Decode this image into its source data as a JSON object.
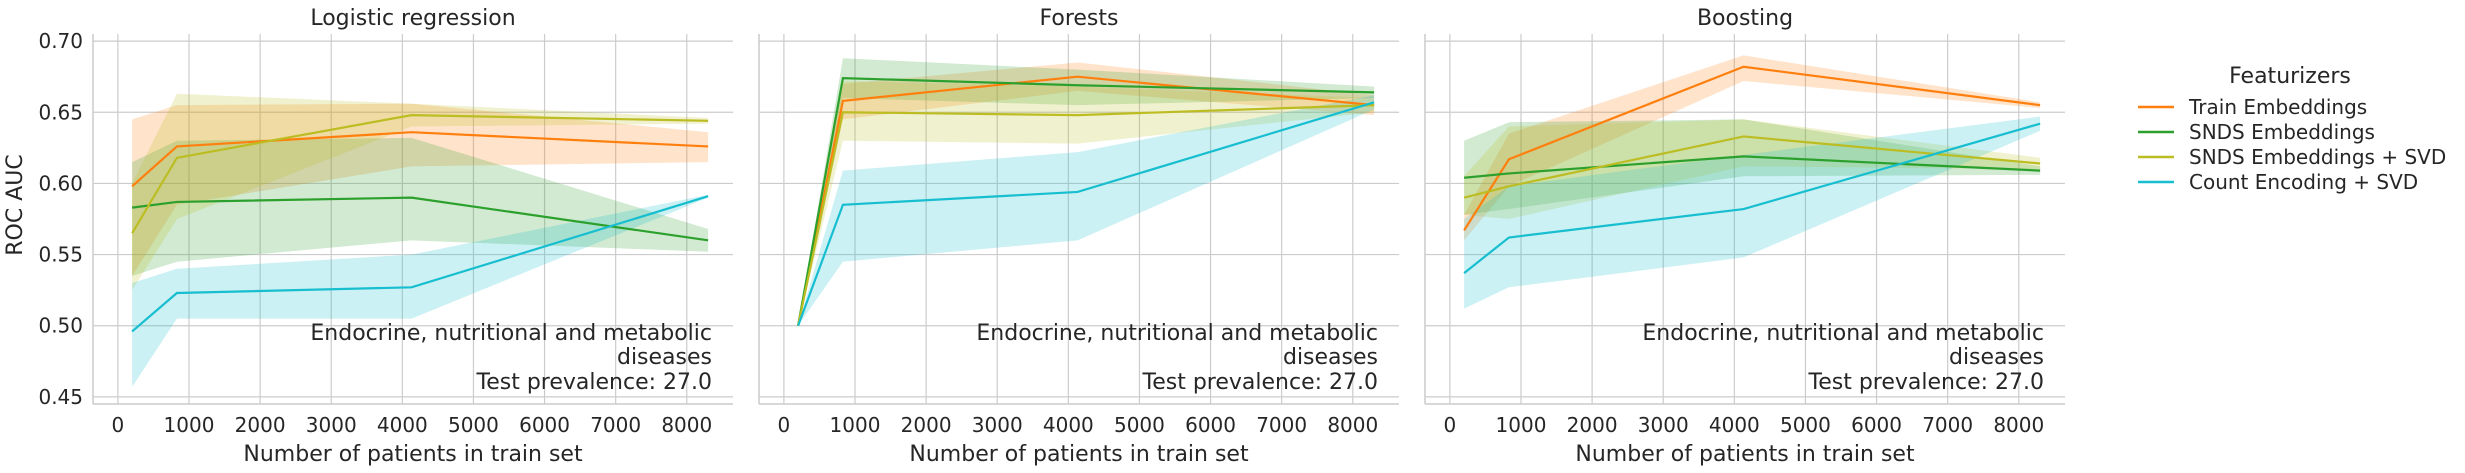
{
  "chart_data": {
    "type": "line",
    "ylabel": "ROC AUC",
    "xlabel": "Number of patients in train set",
    "ylim": [
      0.445,
      0.705
    ],
    "xlim": [
      -350,
      8650
    ],
    "xticks": [
      0,
      1000,
      2000,
      3000,
      4000,
      5000,
      6000,
      7000,
      8000
    ],
    "yticks": [
      "0.45",
      "0.50",
      "0.55",
      "0.60",
      "0.65",
      "0.70"
    ],
    "grid": true,
    "legend": {
      "title": "Featurizers",
      "placement": "right",
      "entries": [
        {
          "label": "Train Embeddings",
          "color": "#ff7f0e"
        },
        {
          "label": "SNDS Embeddings",
          "color": "#2ca02c"
        },
        {
          "label": "SNDS Embeddings + SVD",
          "color": "#bcbd22"
        },
        {
          "label": "Count Encoding + SVD",
          "color": "#17becf"
        }
      ]
    },
    "annotation": [
      "Endocrine, nutritional and metabolic",
      "diseases",
      "Test prevalence: 27.0"
    ],
    "panels": [
      {
        "title": "Logistic regression",
        "series": [
          {
            "name": "Train Embeddings",
            "color": "#ff7f0e",
            "x": [
              200,
              830,
              4130,
              8300
            ],
            "y": [
              0.598,
              0.626,
              0.636,
              0.626
            ],
            "lower": [
              0.535,
              0.585,
              0.612,
              0.615
            ],
            "upper": [
              0.645,
              0.655,
              0.656,
              0.636
            ]
          },
          {
            "name": "SNDS Embeddings",
            "color": "#2ca02c",
            "x": [
              200,
              830,
              4130,
              8300
            ],
            "y": [
              0.583,
              0.587,
              0.59,
              0.56
            ],
            "lower": [
              0.535,
              0.545,
              0.56,
              0.552
            ],
            "upper": [
              0.615,
              0.63,
              0.632,
              0.568
            ]
          },
          {
            "name": "SNDS Embeddings + SVD",
            "color": "#bcbd22",
            "x": [
              200,
              830,
              4130,
              8300
            ],
            "y": [
              0.565,
              0.618,
              0.648,
              0.644
            ],
            "lower": [
              0.525,
              0.575,
              0.64,
              0.642
            ],
            "upper": [
              0.6,
              0.663,
              0.656,
              0.646
            ]
          },
          {
            "name": "Count Encoding + SVD",
            "color": "#17becf",
            "x": [
              200,
              830,
              4130,
              8300
            ],
            "y": [
              0.496,
              0.523,
              0.527,
              0.591
            ],
            "lower": [
              0.457,
              0.505,
              0.505,
              0.59
            ],
            "upper": [
              0.53,
              0.54,
              0.55,
              0.592
            ]
          }
        ]
      },
      {
        "title": "Forests",
        "series": [
          {
            "name": "Train Embeddings",
            "color": "#ff7f0e",
            "x": [
              200,
              830,
              4130,
              8300
            ],
            "y": [
              0.5,
              0.658,
              0.675,
              0.655
            ],
            "lower": [
              0.5,
              0.645,
              0.665,
              0.648
            ],
            "upper": [
              0.5,
              0.67,
              0.685,
              0.662
            ]
          },
          {
            "name": "SNDS Embeddings",
            "color": "#2ca02c",
            "x": [
              200,
              830,
              4130,
              8300
            ],
            "y": [
              0.5,
              0.674,
              0.669,
              0.664
            ],
            "lower": [
              0.5,
              0.66,
              0.655,
              0.66
            ],
            "upper": [
              0.5,
              0.688,
              0.68,
              0.668
            ]
          },
          {
            "name": "SNDS Embeddings + SVD",
            "color": "#bcbd22",
            "x": [
              200,
              830,
              4130,
              8300
            ],
            "y": [
              0.5,
              0.65,
              0.648,
              0.655
            ],
            "lower": [
              0.5,
              0.63,
              0.628,
              0.65
            ],
            "upper": [
              0.5,
              0.672,
              0.668,
              0.66
            ]
          },
          {
            "name": "Count Encoding + SVD",
            "color": "#17becf",
            "x": [
              200,
              830,
              4130,
              8300
            ],
            "y": [
              0.5,
              0.585,
              0.594,
              0.657
            ],
            "lower": [
              0.5,
              0.545,
              0.56,
              0.652
            ],
            "upper": [
              0.5,
              0.609,
              0.622,
              0.662
            ]
          }
        ]
      },
      {
        "title": "Boosting",
        "series": [
          {
            "name": "Train Embeddings",
            "color": "#ff7f0e",
            "x": [
              200,
              830,
              4130,
              8300
            ],
            "y": [
              0.567,
              0.617,
              0.682,
              0.655
            ],
            "lower": [
              0.56,
              0.598,
              0.672,
              0.653
            ],
            "upper": [
              0.578,
              0.635,
              0.69,
              0.657
            ]
          },
          {
            "name": "SNDS Embeddings",
            "color": "#2ca02c",
            "x": [
              200,
              830,
              4130,
              8300
            ],
            "y": [
              0.604,
              0.607,
              0.619,
              0.609
            ],
            "lower": [
              0.578,
              0.582,
              0.605,
              0.606
            ],
            "upper": [
              0.63,
              0.643,
              0.645,
              0.612
            ]
          },
          {
            "name": "SNDS Embeddings + SVD",
            "color": "#bcbd22",
            "x": [
              200,
              830,
              4130,
              8300
            ],
            "y": [
              0.59,
              0.598,
              0.633,
              0.614
            ],
            "lower": [
              0.578,
              0.575,
              0.612,
              0.61
            ],
            "upper": [
              0.605,
              0.64,
              0.645,
              0.618
            ]
          },
          {
            "name": "Count Encoding + SVD",
            "color": "#17becf",
            "x": [
              200,
              830,
              4130,
              8300
            ],
            "y": [
              0.537,
              0.562,
              0.582,
              0.642
            ],
            "lower": [
              0.512,
              0.527,
              0.548,
              0.637
            ],
            "upper": [
              0.575,
              0.598,
              0.62,
              0.647
            ]
          }
        ]
      }
    ]
  }
}
